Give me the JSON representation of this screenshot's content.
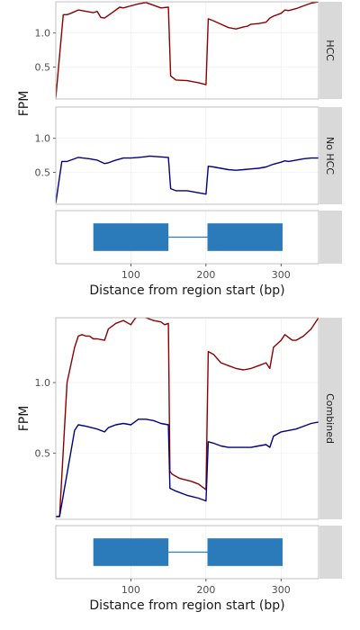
{
  "colors": {
    "case": "#8b0000",
    "control": "#000080",
    "exon": "#2b7bba",
    "strip_bg": "#d9d9d9",
    "panel_border": "#b3b3b3",
    "grid": "#ebebeb"
  },
  "chart_data": [
    {
      "type": "line",
      "panel": "HCC",
      "ylabel": "FPM",
      "xlim": [
        0,
        350
      ],
      "ylim": [
        0.03,
        1.46
      ],
      "yticks": [
        0.5,
        1.0
      ],
      "ytick_labels": [
        "0.5",
        "1.0"
      ],
      "series": [
        {
          "color_key": "case",
          "x": [
            0,
            10,
            15,
            20,
            30,
            40,
            50,
            55,
            60,
            65,
            75,
            85,
            90,
            100,
            110,
            120,
            130,
            140,
            150,
            153,
            160,
            175,
            190,
            200,
            203,
            210,
            220,
            230,
            240,
            250,
            255,
            260,
            270,
            280,
            285,
            290,
            300,
            305,
            310,
            320,
            330,
            340,
            350
          ],
          "y": [
            0.05,
            1.27,
            1.27,
            1.29,
            1.34,
            1.32,
            1.3,
            1.32,
            1.23,
            1.22,
            1.3,
            1.38,
            1.37,
            1.4,
            1.43,
            1.45,
            1.41,
            1.37,
            1.38,
            0.37,
            0.31,
            0.3,
            0.27,
            0.24,
            1.21,
            1.18,
            1.13,
            1.08,
            1.06,
            1.09,
            1.1,
            1.13,
            1.14,
            1.16,
            1.22,
            1.25,
            1.29,
            1.34,
            1.33,
            1.36,
            1.4,
            1.44,
            1.46
          ]
        }
      ]
    },
    {
      "type": "line",
      "panel": "No HCC",
      "ylabel": "FPM",
      "xlim": [
        0,
        350
      ],
      "ylim": [
        0.03,
        1.46
      ],
      "yticks": [
        0.5,
        1.0
      ],
      "ytick_labels": [
        "0.5",
        "1.0"
      ],
      "series": [
        {
          "color_key": "control",
          "x": [
            0,
            8,
            15,
            25,
            30,
            45,
            55,
            65,
            70,
            80,
            90,
            100,
            110,
            120,
            125,
            135,
            150,
            153,
            160,
            175,
            190,
            200,
            203,
            210,
            220,
            230,
            240,
            250,
            260,
            270,
            280,
            290,
            300,
            305,
            310,
            320,
            330,
            340,
            350
          ],
          "y": [
            0.05,
            0.66,
            0.66,
            0.7,
            0.72,
            0.7,
            0.68,
            0.63,
            0.64,
            0.68,
            0.71,
            0.71,
            0.72,
            0.73,
            0.74,
            0.73,
            0.72,
            0.26,
            0.23,
            0.23,
            0.2,
            0.18,
            0.59,
            0.58,
            0.56,
            0.54,
            0.53,
            0.54,
            0.55,
            0.56,
            0.58,
            0.62,
            0.65,
            0.67,
            0.66,
            0.68,
            0.7,
            0.71,
            0.71
          ]
        }
      ]
    },
    {
      "type": "gene-model",
      "panel": "",
      "xlabel": "Distance from region start (bp)",
      "xlim": [
        0,
        350
      ],
      "xticks": [
        100,
        200,
        300
      ],
      "xtick_labels": [
        "100",
        "200",
        "300"
      ],
      "exons": [
        [
          50,
          150
        ],
        [
          202,
          302
        ]
      ],
      "introns": [
        [
          150,
          202
        ]
      ]
    },
    {
      "type": "line",
      "panel": "Combined",
      "ylabel": "FPM",
      "xlim": [
        0,
        350
      ],
      "ylim": [
        0.03,
        1.46
      ],
      "yticks": [
        0.5,
        1.0
      ],
      "ytick_labels": [
        "0.5",
        "1.0"
      ],
      "series": [
        {
          "color_key": "case",
          "x": [
            0,
            5,
            15,
            25,
            30,
            35,
            40,
            45,
            50,
            55,
            65,
            70,
            80,
            90,
            100,
            105,
            110,
            120,
            130,
            140,
            145,
            150,
            152,
            155,
            165,
            180,
            190,
            200,
            203,
            210,
            220,
            230,
            240,
            250,
            260,
            270,
            280,
            285,
            290,
            300,
            305,
            310,
            315,
            320,
            330,
            340,
            350
          ],
          "y": [
            0.05,
            0.05,
            1.0,
            1.25,
            1.33,
            1.34,
            1.33,
            1.33,
            1.31,
            1.31,
            1.3,
            1.38,
            1.42,
            1.44,
            1.41,
            1.45,
            1.48,
            1.46,
            1.44,
            1.43,
            1.41,
            1.42,
            0.37,
            0.35,
            0.32,
            0.3,
            0.28,
            0.24,
            1.22,
            1.2,
            1.14,
            1.12,
            1.1,
            1.09,
            1.1,
            1.12,
            1.14,
            1.1,
            1.25,
            1.3,
            1.34,
            1.32,
            1.3,
            1.3,
            1.33,
            1.38,
            1.46
          ]
        },
        {
          "color_key": "control",
          "x": [
            0,
            5,
            25,
            30,
            40,
            55,
            65,
            70,
            80,
            90,
            100,
            105,
            110,
            120,
            130,
            135,
            140,
            150,
            152,
            160,
            175,
            190,
            200,
            203,
            210,
            220,
            230,
            240,
            250,
            260,
            270,
            280,
            285,
            290,
            300,
            310,
            320,
            330,
            340,
            350
          ],
          "y": [
            0.05,
            0.05,
            0.66,
            0.7,
            0.69,
            0.67,
            0.65,
            0.68,
            0.7,
            0.71,
            0.7,
            0.72,
            0.74,
            0.74,
            0.73,
            0.72,
            0.71,
            0.7,
            0.25,
            0.23,
            0.2,
            0.18,
            0.16,
            0.58,
            0.57,
            0.55,
            0.54,
            0.54,
            0.54,
            0.54,
            0.55,
            0.56,
            0.54,
            0.62,
            0.65,
            0.66,
            0.67,
            0.69,
            0.71,
            0.72
          ]
        }
      ]
    },
    {
      "type": "gene-model",
      "panel": "",
      "xlabel": "Distance from region start (bp)",
      "xlim": [
        0,
        350
      ],
      "xticks": [
        100,
        200,
        300
      ],
      "xtick_labels": [
        "100",
        "200",
        "300"
      ],
      "exons": [
        [
          50,
          150
        ],
        [
          202,
          302
        ]
      ],
      "introns": [
        [
          150,
          202
        ]
      ]
    }
  ]
}
